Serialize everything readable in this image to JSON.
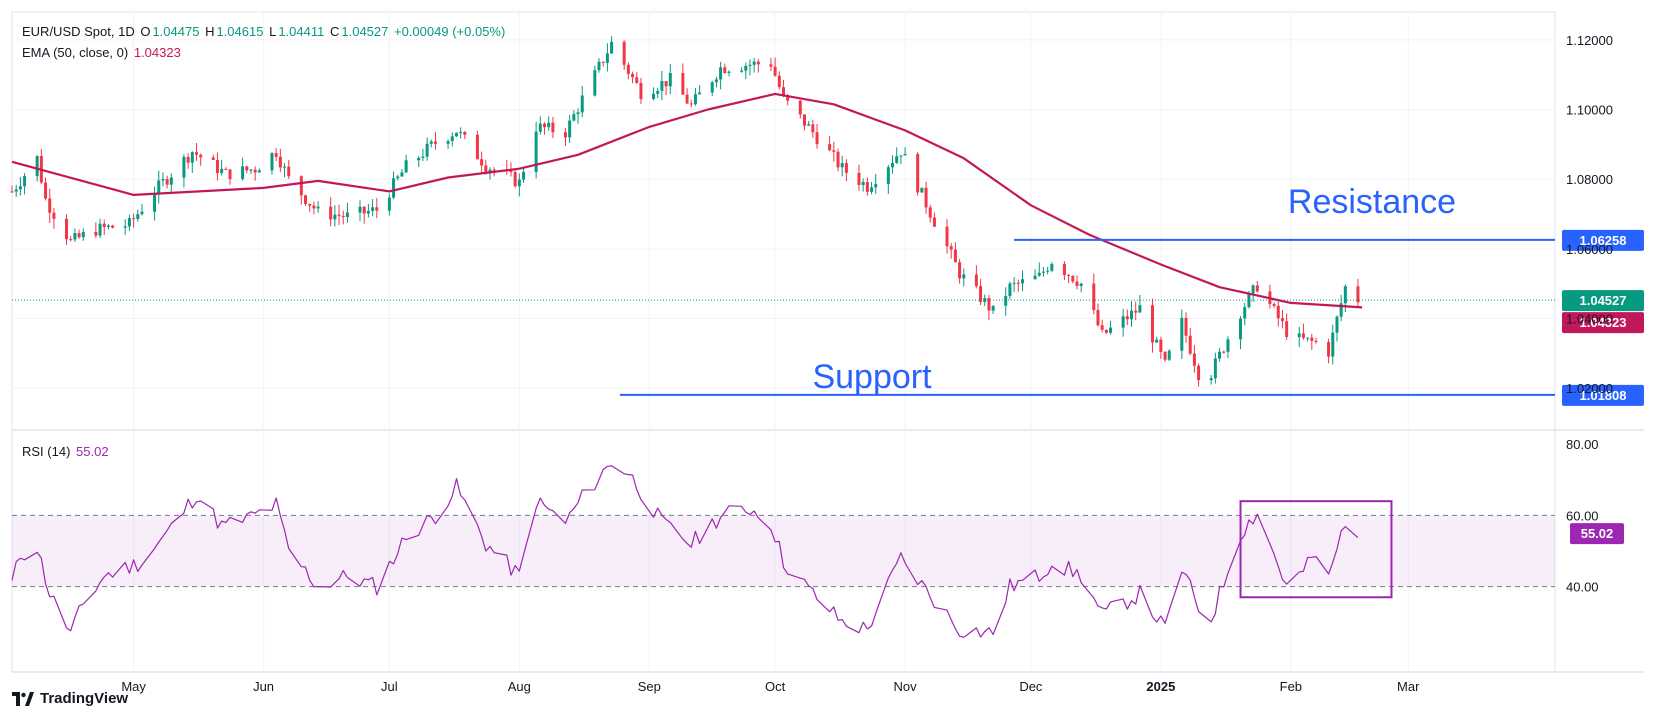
{
  "legend": {
    "symbol": "EUR/USD Spot, 1D",
    "o_label": "O",
    "o": "1.04475",
    "h_label": "H",
    "h": "1.04615",
    "l_label": "L",
    "l": "1.04411",
    "c_label": "C",
    "c": "1.04527",
    "change": "+0.00049 (+0.05%)",
    "ema_label": "EMA (50, close, 0)",
    "ema_value": "1.04323",
    "rsi_label": "RSI (14)",
    "rsi_value": "55.02"
  },
  "brand": {
    "name": "TradingView"
  },
  "colors": {
    "up": "#089981",
    "down": "#f23645",
    "ema": "#c2185b",
    "rsi": "#9c27b0",
    "levels": "#2962ff"
  },
  "chart_data": [
    {
      "type": "candlestick",
      "title": "",
      "y_axis_ticks": [
        1.12,
        1.1,
        1.08,
        1.06,
        1.04,
        1.02
      ],
      "y_tick_labels": [
        "1.12000",
        "1.10000",
        "1.08000",
        "1.06000",
        "1.04000",
        "1.02000"
      ],
      "ylim": [
        1.008,
        1.128
      ],
      "x_tick_labels": [
        "May",
        "Jun",
        "Jul",
        "Aug",
        "Sep",
        "Oct",
        "Nov",
        "Dec",
        "2025",
        "Feb",
        "Mar"
      ],
      "x_tick_dates": [
        "2024-05-01",
        "2024-06-01",
        "2024-07-01",
        "2024-08-01",
        "2024-09-01",
        "2024-10-01",
        "2024-11-01",
        "2024-12-01",
        "2025-01-01",
        "2025-02-01",
        "2025-03-01"
      ],
      "xlim": [
        "2024-04-02",
        "2025-04-05"
      ],
      "close_series": [
        {
          "date": "2024-04-02",
          "close": 1.0765
        },
        {
          "date": "2024-04-08",
          "close": 1.086
        },
        {
          "date": "2024-04-10",
          "close": 1.0742
        },
        {
          "date": "2024-04-16",
          "close": 1.062
        },
        {
          "date": "2024-04-22",
          "close": 1.0655
        },
        {
          "date": "2024-04-30",
          "close": 1.067
        },
        {
          "date": "2024-05-06",
          "close": 1.0765
        },
        {
          "date": "2024-05-15",
          "close": 1.088
        },
        {
          "date": "2024-05-23",
          "close": 1.0815
        },
        {
          "date": "2024-05-30",
          "close": 1.083
        },
        {
          "date": "2024-06-04",
          "close": 1.088
        },
        {
          "date": "2024-06-07",
          "close": 1.08
        },
        {
          "date": "2024-06-14",
          "close": 1.0705
        },
        {
          "date": "2024-06-21",
          "close": 1.0693
        },
        {
          "date": "2024-06-28",
          "close": 1.0712
        },
        {
          "date": "2024-07-05",
          "close": 1.0836
        },
        {
          "date": "2024-07-12",
          "close": 1.0905
        },
        {
          "date": "2024-07-17",
          "close": 1.094
        },
        {
          "date": "2024-07-24",
          "close": 1.084
        },
        {
          "date": "2024-08-01",
          "close": 1.079
        },
        {
          "date": "2024-08-05",
          "close": 1.095
        },
        {
          "date": "2024-08-12",
          "close": 1.0935
        },
        {
          "date": "2024-08-16",
          "close": 1.103
        },
        {
          "date": "2024-08-23",
          "close": 1.119
        },
        {
          "date": "2024-08-30",
          "close": 1.105
        },
        {
          "date": "2024-09-06",
          "close": 1.1085
        },
        {
          "date": "2024-09-11",
          "close": 1.101
        },
        {
          "date": "2024-09-18",
          "close": 1.112
        },
        {
          "date": "2024-09-25",
          "close": 1.113
        },
        {
          "date": "2024-09-30",
          "close": 1.1133
        },
        {
          "date": "2024-10-03",
          "close": 1.103
        },
        {
          "date": "2024-10-10",
          "close": 1.0935
        },
        {
          "date": "2024-10-17",
          "close": 1.083
        },
        {
          "date": "2024-10-23",
          "close": 1.078
        },
        {
          "date": "2024-10-31",
          "close": 1.0883
        },
        {
          "date": "2024-11-06",
          "close": 1.073
        },
        {
          "date": "2024-11-14",
          "close": 1.053
        },
        {
          "date": "2024-11-22",
          "close": 1.0419
        },
        {
          "date": "2024-11-26",
          "close": 1.049
        },
        {
          "date": "2024-12-03",
          "close": 1.052
        },
        {
          "date": "2024-12-06",
          "close": 1.0567
        },
        {
          "date": "2024-12-13",
          "close": 1.05
        },
        {
          "date": "2024-12-18",
          "close": 1.0351
        },
        {
          "date": "2024-12-27",
          "close": 1.043
        },
        {
          "date": "2025-01-02",
          "close": 1.0265
        },
        {
          "date": "2025-01-06",
          "close": 1.0388
        },
        {
          "date": "2025-01-10",
          "close": 1.0243
        },
        {
          "date": "2025-01-13",
          "close": 1.0244
        },
        {
          "date": "2025-01-20",
          "close": 1.042
        },
        {
          "date": "2025-01-24",
          "close": 1.0495
        },
        {
          "date": "2025-01-31",
          "close": 1.0363
        },
        {
          "date": "2025-02-03",
          "close": 1.034
        },
        {
          "date": "2025-02-07",
          "close": 1.033
        },
        {
          "date": "2025-02-10",
          "close": 1.0305
        },
        {
          "date": "2025-02-14",
          "close": 1.049
        },
        {
          "date": "2025-02-17",
          "close": 1.0455
        }
      ],
      "ema_series": [
        {
          "date": "2024-04-02",
          "value": 1.085
        },
        {
          "date": "2024-05-01",
          "value": 1.0755
        },
        {
          "date": "2024-06-01",
          "value": 1.0775
        },
        {
          "date": "2024-06-14",
          "value": 1.0795
        },
        {
          "date": "2024-07-01",
          "value": 1.0765
        },
        {
          "date": "2024-07-15",
          "value": 1.0805
        },
        {
          "date": "2024-08-01",
          "value": 1.083
        },
        {
          "date": "2024-08-15",
          "value": 1.087
        },
        {
          "date": "2024-09-01",
          "value": 1.095
        },
        {
          "date": "2024-09-15",
          "value": 1.1
        },
        {
          "date": "2024-10-01",
          "value": 1.1045
        },
        {
          "date": "2024-10-15",
          "value": 1.1015
        },
        {
          "date": "2024-11-01",
          "value": 1.094
        },
        {
          "date": "2024-11-15",
          "value": 1.086
        },
        {
          "date": "2024-12-01",
          "value": 1.0725
        },
        {
          "date": "2024-12-15",
          "value": 1.064
        },
        {
          "date": "2025-01-01",
          "value": 1.0555
        },
        {
          "date": "2025-01-15",
          "value": 1.049
        },
        {
          "date": "2025-02-01",
          "value": 1.0445
        },
        {
          "date": "2025-02-18",
          "value": 1.0432
        }
      ],
      "last_price": 1.04527,
      "ema_last": 1.04323,
      "last_price_label": "1.04527",
      "ema_last_label": "1.04323",
      "annotations": [
        {
          "text": "Resistance",
          "price": 1.06258,
          "price_label": "1.06258",
          "from_date": "2024-11-27"
        },
        {
          "text": "Support",
          "price": 1.01808,
          "price_label": "1.01808",
          "from_date": "2024-08-25"
        }
      ]
    },
    {
      "type": "line",
      "title": "",
      "name": "RSI (14)",
      "y_axis_ticks": [
        80,
        60,
        40
      ],
      "y_tick_labels": [
        "80.00",
        "60.00",
        "40.00"
      ],
      "ylim": [
        16,
        84
      ],
      "overbought": 60,
      "oversold": 40,
      "last_value": 55.02,
      "last_value_label": "55.02",
      "values": [
        {
          "date": "2024-04-02",
          "value": 41
        },
        {
          "date": "2024-04-04",
          "value": 49
        },
        {
          "date": "2024-04-08",
          "value": 51
        },
        {
          "date": "2024-04-11",
          "value": 38
        },
        {
          "date": "2024-04-16",
          "value": 27
        },
        {
          "date": "2024-04-19",
          "value": 35
        },
        {
          "date": "2024-04-24",
          "value": 43
        },
        {
          "date": "2024-05-03",
          "value": 47
        },
        {
          "date": "2024-05-09",
          "value": 55
        },
        {
          "date": "2024-05-16",
          "value": 66
        },
        {
          "date": "2024-05-22",
          "value": 57
        },
        {
          "date": "2024-05-28",
          "value": 59
        },
        {
          "date": "2024-06-04",
          "value": 63
        },
        {
          "date": "2024-06-07",
          "value": 50
        },
        {
          "date": "2024-06-14",
          "value": 40
        },
        {
          "date": "2024-06-21",
          "value": 43
        },
        {
          "date": "2024-06-28",
          "value": 40
        },
        {
          "date": "2024-07-05",
          "value": 54
        },
        {
          "date": "2024-07-12",
          "value": 60
        },
        {
          "date": "2024-07-17",
          "value": 68
        },
        {
          "date": "2024-07-24",
          "value": 52
        },
        {
          "date": "2024-08-01",
          "value": 43
        },
        {
          "date": "2024-08-05",
          "value": 64
        },
        {
          "date": "2024-08-12",
          "value": 58
        },
        {
          "date": "2024-08-16",
          "value": 65
        },
        {
          "date": "2024-08-23",
          "value": 75
        },
        {
          "date": "2024-08-27",
          "value": 72
        },
        {
          "date": "2024-09-04",
          "value": 58
        },
        {
          "date": "2024-09-11",
          "value": 52
        },
        {
          "date": "2024-09-18",
          "value": 60
        },
        {
          "date": "2024-09-25",
          "value": 62
        },
        {
          "date": "2024-09-30",
          "value": 58
        },
        {
          "date": "2024-10-03",
          "value": 47
        },
        {
          "date": "2024-10-10",
          "value": 38
        },
        {
          "date": "2024-10-17",
          "value": 30
        },
        {
          "date": "2024-10-23",
          "value": 28
        },
        {
          "date": "2024-10-31",
          "value": 48
        },
        {
          "date": "2024-11-06",
          "value": 39
        },
        {
          "date": "2024-11-14",
          "value": 28
        },
        {
          "date": "2024-11-22",
          "value": 27
        },
        {
          "date": "2024-11-26",
          "value": 40
        },
        {
          "date": "2024-12-03",
          "value": 43
        },
        {
          "date": "2024-12-06",
          "value": 47
        },
        {
          "date": "2024-12-13",
          "value": 43
        },
        {
          "date": "2024-12-18",
          "value": 32
        },
        {
          "date": "2024-12-27",
          "value": 38
        },
        {
          "date": "2025-01-02",
          "value": 28
        },
        {
          "date": "2025-01-06",
          "value": 45
        },
        {
          "date": "2025-01-10",
          "value": 34
        },
        {
          "date": "2025-01-13",
          "value": 31
        },
        {
          "date": "2025-01-20",
          "value": 55
        },
        {
          "date": "2025-01-24",
          "value": 61
        },
        {
          "date": "2025-01-31",
          "value": 40
        },
        {
          "date": "2025-02-03",
          "value": 43
        },
        {
          "date": "2025-02-07",
          "value": 49
        },
        {
          "date": "2025-02-10",
          "value": 42
        },
        {
          "date": "2025-02-14",
          "value": 59
        },
        {
          "date": "2025-02-17",
          "value": 55
        }
      ],
      "highlight_box": {
        "from_date": "2025-01-20",
        "to_date": "2025-02-25",
        "value_range": [
          37,
          64
        ]
      }
    }
  ]
}
